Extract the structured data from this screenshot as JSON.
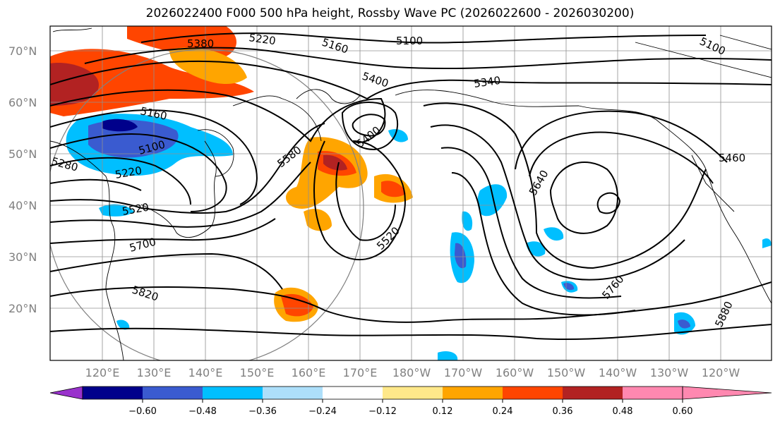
{
  "title": "2026022400 F000 500 hPa height, Rossby Wave PC (2026022600 - 2026030200)",
  "map": {
    "lat_labels": [
      "70°N",
      "60°N",
      "50°N",
      "40°N",
      "30°N",
      "20°N"
    ],
    "lon_labels": [
      "120°E",
      "130°E",
      "140°E",
      "150°E",
      "160°E",
      "170°E",
      "180°W",
      "170°W",
      "160°W",
      "150°W",
      "140°W",
      "130°W",
      "120°W"
    ],
    "contour_labels": [
      "5380",
      "5220",
      "5160",
      "5100",
      "5100",
      "5400",
      "5340",
      "5160",
      "5100",
      "5280",
      "5220",
      "5400",
      "5580",
      "5460",
      "5520",
      "5640",
      "5700",
      "5520",
      "5760",
      "5820",
      "5880"
    ]
  },
  "colorbar": {
    "ticks": [
      "−0.60",
      "−0.48",
      "−0.36",
      "−0.24",
      "−0.12",
      "0.12",
      "0.24",
      "0.36",
      "0.48",
      "0.60"
    ],
    "colors": [
      "#9932CC",
      "#00008B",
      "#3A5BD0",
      "#00BFFF",
      "#ADDFFA",
      "#FFFFFF",
      "#FFE88A",
      "#FFA500",
      "#FF4500",
      "#B22222",
      "#FF88B0"
    ]
  }
}
